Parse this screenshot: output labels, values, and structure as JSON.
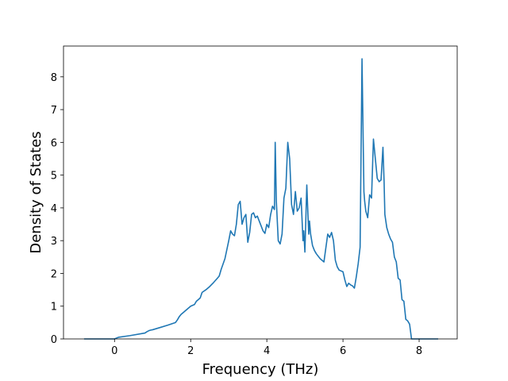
{
  "chart_data": {
    "type": "line",
    "title": "",
    "xlabel": "Frequency (THz)",
    "ylabel": "Density of States",
    "xlim": [
      -1.34,
      9.0
    ],
    "ylim": [
      0,
      8.94
    ],
    "xticks": [
      0,
      2,
      4,
      6,
      8
    ],
    "yticks": [
      0,
      1,
      2,
      3,
      4,
      5,
      6,
      7,
      8
    ],
    "grid": false,
    "legend": "none",
    "line_color": "#1f77b4",
    "series": [
      {
        "x": [
          -0.8,
          -0.4,
          -0.1,
          0.0,
          0.1,
          0.4,
          0.8,
          0.85,
          0.9,
          0.95,
          1.0,
          1.2,
          1.4,
          1.6,
          1.65,
          1.7,
          1.75,
          1.8,
          1.9,
          2.0,
          2.1,
          2.15,
          2.2,
          2.25,
          2.3,
          2.4,
          2.5,
          2.6,
          2.7,
          2.75,
          2.8,
          2.9,
          3.0,
          3.05,
          3.1,
          3.15,
          3.2,
          3.25,
          3.3,
          3.35,
          3.4,
          3.45,
          3.5,
          3.55,
          3.6,
          3.65,
          3.7,
          3.75,
          3.8,
          3.85,
          3.9,
          3.95,
          4.0,
          4.05,
          4.1,
          4.15,
          4.2,
          4.22,
          4.25,
          4.3,
          4.35,
          4.4,
          4.45,
          4.5,
          4.55,
          4.57,
          4.6,
          4.65,
          4.7,
          4.75,
          4.8,
          4.85,
          4.9,
          4.95,
          4.97,
          5.0,
          5.05,
          5.1,
          5.12,
          5.15,
          5.2,
          5.25,
          5.3,
          5.4,
          5.5,
          5.6,
          5.65,
          5.7,
          5.75,
          5.8,
          5.85,
          5.9,
          6.0,
          6.05,
          6.1,
          6.15,
          6.2,
          6.25,
          6.3,
          6.35,
          6.4,
          6.45,
          6.5,
          6.55,
          6.57,
          6.6,
          6.65,
          6.7,
          6.75,
          6.8,
          6.85,
          6.9,
          6.95,
          7.0,
          7.05,
          7.08,
          7.1,
          7.15,
          7.2,
          7.25,
          7.3,
          7.35,
          7.4,
          7.45,
          7.5,
          7.55,
          7.6,
          7.65,
          7.7,
          7.75,
          7.8,
          8.0,
          8.2,
          8.5
        ],
        "values": [
          0.0,
          0.0,
          0.0,
          0.0,
          0.05,
          0.1,
          0.18,
          0.22,
          0.25,
          0.27,
          0.28,
          0.35,
          0.42,
          0.5,
          0.58,
          0.68,
          0.75,
          0.8,
          0.9,
          1.0,
          1.05,
          1.15,
          1.2,
          1.25,
          1.42,
          1.5,
          1.6,
          1.72,
          1.85,
          1.92,
          2.12,
          2.45,
          3.0,
          3.3,
          3.2,
          3.15,
          3.5,
          4.1,
          4.2,
          3.5,
          3.7,
          3.8,
          2.95,
          3.25,
          3.8,
          3.85,
          3.7,
          3.75,
          3.6,
          3.45,
          3.3,
          3.22,
          3.5,
          3.4,
          3.8,
          4.05,
          3.95,
          6.0,
          4.2,
          3.0,
          2.9,
          3.2,
          4.3,
          4.6,
          6.0,
          5.8,
          5.5,
          4.1,
          3.8,
          4.5,
          3.9,
          4.0,
          4.3,
          3.0,
          3.3,
          2.65,
          4.7,
          3.2,
          3.6,
          3.2,
          2.85,
          2.7,
          2.6,
          2.45,
          2.35,
          3.2,
          3.1,
          3.25,
          3.0,
          2.4,
          2.2,
          2.1,
          2.05,
          1.8,
          1.6,
          1.7,
          1.65,
          1.62,
          1.55,
          1.9,
          2.3,
          2.8,
          8.55,
          4.5,
          4.2,
          3.9,
          3.7,
          4.4,
          4.3,
          6.1,
          5.5,
          4.9,
          4.8,
          4.85,
          5.85,
          4.8,
          3.8,
          3.4,
          3.2,
          3.05,
          2.95,
          2.5,
          2.35,
          1.85,
          1.8,
          1.2,
          1.15,
          0.6,
          0.55,
          0.45,
          0.0,
          0.0,
          0.0,
          0.0
        ]
      }
    ]
  }
}
